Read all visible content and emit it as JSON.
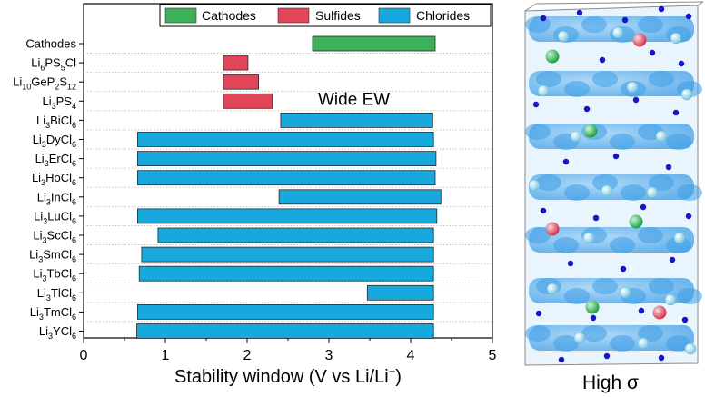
{
  "chart_data": {
    "type": "bar",
    "orientation": "horizontal-floating",
    "xlabel_main": "Stability window (V vs Li/Li",
    "xlabel_sup": "+",
    "xlabel_end": ")",
    "xlim": [
      0,
      5
    ],
    "xticks": [
      0,
      1,
      2,
      3,
      4,
      5
    ],
    "grid": "dotted horizontal lines between categories",
    "legend_position": "top",
    "legend": [
      {
        "name": "Cathodes",
        "color": "#3cb15a"
      },
      {
        "name": "Sulfides",
        "color": "#e04657"
      },
      {
        "name": "Chlorides",
        "color": "#17a9dd"
      }
    ],
    "categories": [
      {
        "label": [
          {
            "t": "Cathodes"
          }
        ],
        "group": "Cathodes",
        "range": [
          2.8,
          4.3
        ]
      },
      {
        "label": [
          {
            "t": "Li"
          },
          {
            "t": "6",
            "s": "sub"
          },
          {
            "t": "PS"
          },
          {
            "t": "5",
            "s": "sub"
          },
          {
            "t": "Cl"
          }
        ],
        "group": "Sulfides",
        "range": [
          1.71,
          2.01
        ]
      },
      {
        "label": [
          {
            "t": "Li"
          },
          {
            "t": "10",
            "s": "sub"
          },
          {
            "t": "GeP"
          },
          {
            "t": "2",
            "s": "sub"
          },
          {
            "t": "S"
          },
          {
            "t": "12",
            "s": "sub"
          }
        ],
        "group": "Sulfides",
        "range": [
          1.71,
          2.14
        ]
      },
      {
        "label": [
          {
            "t": "Li"
          },
          {
            "t": "3",
            "s": "sub"
          },
          {
            "t": "PS"
          },
          {
            "t": "4",
            "s": "sub"
          }
        ],
        "group": "Sulfides",
        "range": [
          1.71,
          2.31
        ]
      },
      {
        "label": [
          {
            "t": "Li"
          },
          {
            "t": "3",
            "s": "sub"
          },
          {
            "t": "BiCl"
          },
          {
            "t": "6",
            "s": "sub"
          }
        ],
        "group": "Chlorides",
        "range": [
          2.41,
          4.27
        ]
      },
      {
        "label": [
          {
            "t": "Li"
          },
          {
            "t": "3",
            "s": "sub"
          },
          {
            "t": "DyCl"
          },
          {
            "t": "6",
            "s": "sub"
          }
        ],
        "group": "Chlorides",
        "range": [
          0.66,
          4.28
        ]
      },
      {
        "label": [
          {
            "t": "Li"
          },
          {
            "t": "3",
            "s": "sub"
          },
          {
            "t": "ErCl"
          },
          {
            "t": "6",
            "s": "sub"
          }
        ],
        "group": "Chlorides",
        "range": [
          0.66,
          4.31
        ]
      },
      {
        "label": [
          {
            "t": "Li"
          },
          {
            "t": "3",
            "s": "sub"
          },
          {
            "t": "HoCl"
          },
          {
            "t": "6",
            "s": "sub"
          }
        ],
        "group": "Chlorides",
        "range": [
          0.66,
          4.3
        ]
      },
      {
        "label": [
          {
            "t": "Li"
          },
          {
            "t": "3",
            "s": "sub"
          },
          {
            "t": "InCl"
          },
          {
            "t": "6",
            "s": "sub"
          }
        ],
        "group": "Chlorides",
        "range": [
          2.39,
          4.37
        ]
      },
      {
        "label": [
          {
            "t": "Li"
          },
          {
            "t": "3",
            "s": "sub"
          },
          {
            "t": "LuCl"
          },
          {
            "t": "6",
            "s": "sub"
          }
        ],
        "group": "Chlorides",
        "range": [
          0.66,
          4.32
        ]
      },
      {
        "label": [
          {
            "t": "Li"
          },
          {
            "t": "3",
            "s": "sub"
          },
          {
            "t": "ScCl"
          },
          {
            "t": "6",
            "s": "sub"
          }
        ],
        "group": "Chlorides",
        "range": [
          0.91,
          4.28
        ]
      },
      {
        "label": [
          {
            "t": "Li"
          },
          {
            "t": "3",
            "s": "sub"
          },
          {
            "t": "SmCl"
          },
          {
            "t": "6",
            "s": "sub"
          }
        ],
        "group": "Chlorides",
        "range": [
          0.71,
          4.28
        ]
      },
      {
        "label": [
          {
            "t": "Li"
          },
          {
            "t": "3",
            "s": "sub"
          },
          {
            "t": "TbCl"
          },
          {
            "t": "6",
            "s": "sub"
          }
        ],
        "group": "Chlorides",
        "range": [
          0.68,
          4.28
        ]
      },
      {
        "label": [
          {
            "t": "Li"
          },
          {
            "t": "3",
            "s": "sub"
          },
          {
            "t": "TlCl"
          },
          {
            "t": "6",
            "s": "sub"
          }
        ],
        "group": "Chlorides",
        "range": [
          3.47,
          4.28
        ]
      },
      {
        "label": [
          {
            "t": "Li"
          },
          {
            "t": "3",
            "s": "sub"
          },
          {
            "t": "TmCl"
          },
          {
            "t": "6",
            "s": "sub"
          }
        ],
        "group": "Chlorides",
        "range": [
          0.66,
          4.28
        ]
      },
      {
        "label": [
          {
            "t": "Li"
          },
          {
            "t": "3",
            "s": "sub"
          },
          {
            "t": "YCl"
          },
          {
            "t": "6",
            "s": "sub"
          }
        ],
        "group": "Chlorides",
        "range": [
          0.65,
          4.28
        ]
      }
    ],
    "annotations": [
      {
        "text": "Wide EW",
        "x": 2.8,
        "near_category": 3
      }
    ]
  },
  "structure_panel": {
    "caption": "High σ",
    "colors": {
      "framework": "#3f9ee6",
      "li_atom": "#1414c8",
      "cl_atom": "#8fd6ea",
      "green_atom": "#2fc15a",
      "red_atom": "#e0566a"
    }
  }
}
